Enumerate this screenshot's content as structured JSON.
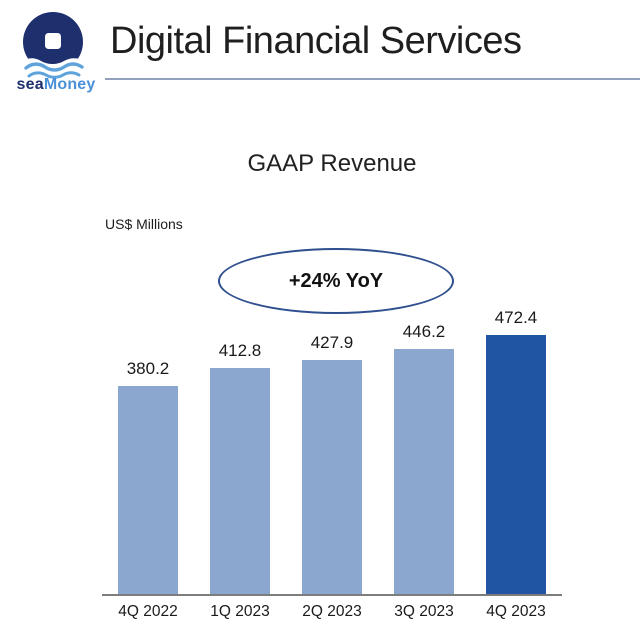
{
  "header": {
    "logo": {
      "sea": "sea",
      "money": "Money"
    },
    "title": "Digital Financial Services"
  },
  "chart": {
    "title": "GAAP Revenue",
    "units_label": "US$ Millions",
    "badge": "+24% YoY"
  },
  "chart_data": {
    "type": "bar",
    "title": "GAAP Revenue",
    "ylabel": "US$ Millions",
    "categories": [
      "4Q 2022",
      "1Q 2023",
      "2Q 2023",
      "3Q 2023",
      "4Q 2023"
    ],
    "values": [
      380.2,
      412.8,
      427.9,
      446.2,
      472.4
    ],
    "data_labels": [
      380.2,
      412.8,
      427.9,
      446.2,
      472.4
    ],
    "annotation": "+24% YoY",
    "bar_colors": [
      "#8CA7CF",
      "#8CA7CF",
      "#8CA7CF",
      "#8CA7CF",
      "#2055A4"
    ],
    "highlight_index": 4,
    "ylim": [
      0,
      500
    ],
    "grid": false,
    "legend": false
  },
  "colors": {
    "bar_light": "#8CA7CF",
    "bar_dark": "#2055A4",
    "ellipse_stroke": "#2F4F8F",
    "header_divider": "#92A2BC",
    "axis_line": "#7D7D7D",
    "logo_navy": "#1E2F6E",
    "logo_blue": "#4A90D8",
    "logo_wave_blue": "#5FA3DC",
    "text": "#1C1C1C"
  }
}
